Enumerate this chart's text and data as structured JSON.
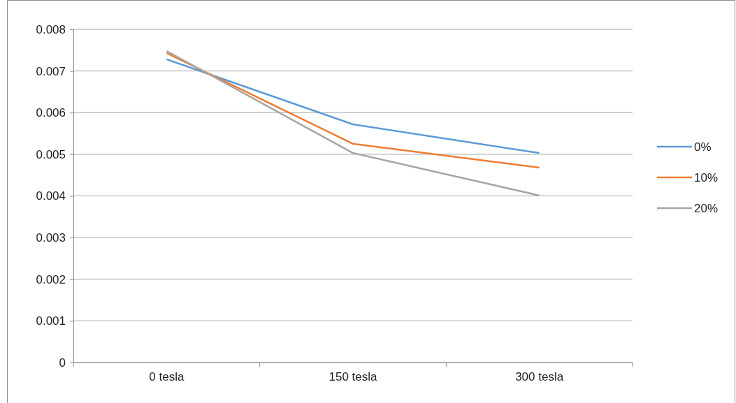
{
  "chart_data": {
    "type": "line",
    "categories": [
      "0 tesla",
      "150 tesla",
      "300 tesla"
    ],
    "series": [
      {
        "name": "0%",
        "color": "#5b9bd5",
        "values": [
          0.00728,
          0.00572,
          0.00503
        ]
      },
      {
        "name": "10%",
        "color": "#ed7d31",
        "values": [
          0.00743,
          0.00525,
          0.00468
        ]
      },
      {
        "name": "20%",
        "color": "#a5a5a5",
        "values": [
          0.00748,
          0.00503,
          0.00401
        ]
      }
    ],
    "ylim": [
      0,
      0.008
    ],
    "yticks": [
      0,
      0.001,
      0.002,
      0.003,
      0.004,
      0.005,
      0.006,
      0.007,
      0.008
    ],
    "grid": "y",
    "legend": "right",
    "marker": "none",
    "line_style": "solid"
  }
}
